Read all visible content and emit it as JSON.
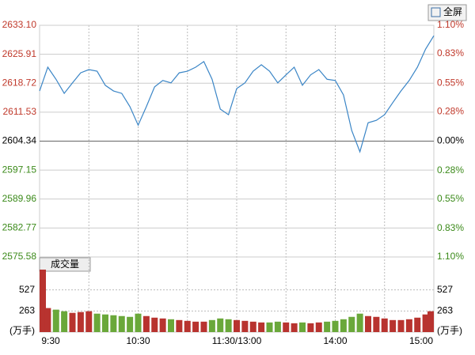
{
  "button": "全屏",
  "chart_data": {
    "type": "line",
    "x": [
      "9:30",
      "9:35",
      "9:40",
      "9:45",
      "9:50",
      "9:55",
      "10:00",
      "10:05",
      "10:10",
      "10:15",
      "10:20",
      "10:25",
      "10:30",
      "10:35",
      "10:40",
      "10:45",
      "10:50",
      "10:55",
      "11:00",
      "11:05",
      "11:10",
      "11:15",
      "11:20",
      "11:25",
      "11:30",
      "13:05",
      "13:10",
      "13:15",
      "13:20",
      "13:25",
      "13:30",
      "13:35",
      "13:40",
      "13:45",
      "13:50",
      "13:55",
      "14:00",
      "14:05",
      "14:10",
      "14:15",
      "14:20",
      "14:25",
      "14:30",
      "14:35",
      "14:40",
      "14:45",
      "14:50",
      "14:55",
      "15:00"
    ],
    "series": [
      {
        "color": "#3a85c6",
        "values": [
          2616.8,
          2622.7,
          2619.7,
          2616.2,
          2618.8,
          2621.3,
          2622.1,
          2621.7,
          2618.2,
          2616.8,
          2616.2,
          2612.9,
          2608.3,
          2612.9,
          2617.8,
          2619.4,
          2618.8,
          2621.3,
          2621.7,
          2622.7,
          2624.1,
          2619.7,
          2612.3,
          2610.9,
          2617.4,
          2618.8,
          2621.7,
          2623.3,
          2621.7,
          2618.8,
          2620.8,
          2622.7,
          2618.2,
          2620.8,
          2622.1,
          2619.7,
          2619.4,
          2615.8,
          2607.0,
          2601.7,
          2608.9,
          2609.5,
          2610.9,
          2613.9,
          2616.8,
          2619.4,
          2622.7,
          2627.2,
          2630.5
        ]
      }
    ],
    "ylim": [
      2575.58,
      2633.1
    ],
    "yticks": [
      {
        "value": 2633.1,
        "label": "2633.10"
      },
      2625.91,
      2618.72,
      2611.53,
      2604.34,
      2597.15,
      2589.96,
      2582.77,
      2575.58
    ],
    "y2lim": [
      -1.1,
      1.1
    ],
    "y2ticks": [
      {
        "value": 1.1,
        "label": "1.10%"
      },
      {
        "value": 0.83,
        "label": "0.83%"
      },
      {
        "value": 0.55,
        "label": "0.55%"
      },
      {
        "value": 0.28,
        "label": "0.28%"
      },
      {
        "value": 0,
        "label": "0.00%"
      },
      {
        "value": -0.28,
        "label": "0.28%"
      },
      {
        "value": -0.55,
        "label": "0.55%"
      },
      {
        "value": -0.83,
        "label": "0.83%"
      },
      {
        "value": -1.1,
        "label": "1.10%"
      }
    ],
    "xticks": [
      "9:30",
      "10:30",
      "11:30/13:00",
      "14:00",
      "15:00"
    ],
    "volume": {
      "label": "成交量",
      "unit": "(万手)",
      "up_color": "#b8332f",
      "down_color": "#6aa83a",
      "values": [
        780,
        300,
        280,
        260,
        240,
        250,
        260,
        230,
        220,
        210,
        200,
        190,
        230,
        200,
        180,
        170,
        160,
        150,
        140,
        130,
        130,
        150,
        170,
        160,
        150,
        140,
        130,
        120,
        120,
        130,
        120,
        110,
        120,
        110,
        120,
        130,
        140,
        160,
        190,
        230,
        200,
        190,
        170,
        150,
        150,
        160,
        180,
        220,
        260
      ],
      "ylim": [
        0,
        790
      ],
      "yticks": [
        527,
        263
      ]
    }
  }
}
